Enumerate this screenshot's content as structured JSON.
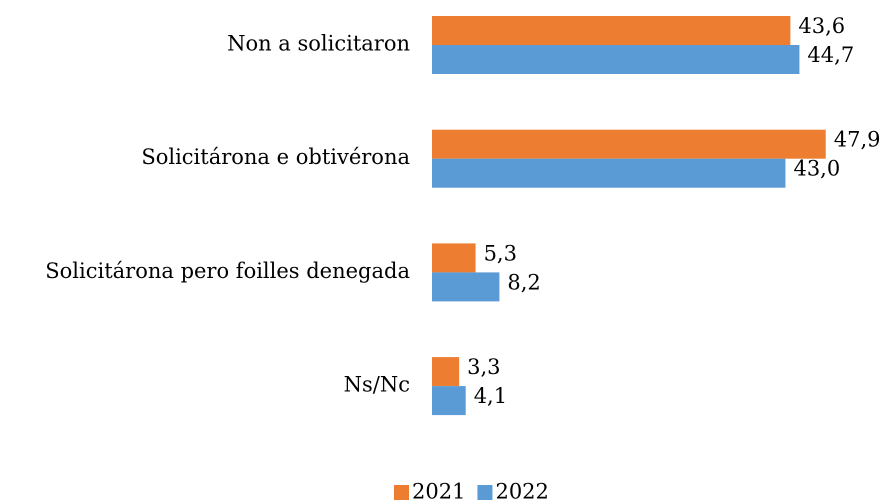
{
  "chart_data": {
    "type": "bar",
    "orientation": "horizontal",
    "categories": [
      "Non a solicitaron",
      "Solicitárona e obtivérona",
      "Solicitárona pero foilles denegada",
      "Ns/Nc"
    ],
    "series": [
      {
        "name": "2021",
        "color": "#ED7D31",
        "values": [
          43.6,
          47.9,
          5.3,
          3.3
        ],
        "value_labels": [
          "43,6",
          "47,9",
          "5,3",
          "3,3"
        ]
      },
      {
        "name": "2022",
        "color": "#5B9BD5",
        "values": [
          44.7,
          43.0,
          8.2,
          4.1
        ],
        "value_labels": [
          "44,7",
          "43,0",
          "8,2",
          "4,1"
        ]
      }
    ],
    "xlim": [
      0,
      50
    ],
    "legend": "bottom"
  }
}
